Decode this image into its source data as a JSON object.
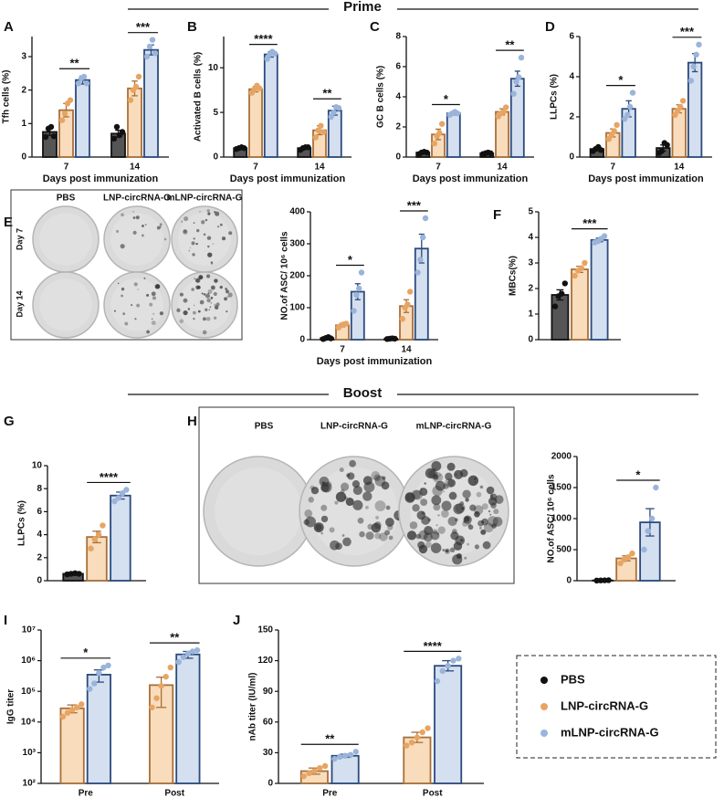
{
  "sections": [
    "Prime",
    "Boost"
  ],
  "elispot": [
    {
      "panel": "E",
      "columns": [
        "PBS",
        "LNP-circRNA-G",
        "mLNP-circRNA-G"
      ],
      "rows": [
        "Day 7",
        "Day 14"
      ]
    },
    {
      "panel": "H",
      "columns": [
        "PBS",
        "LNP-circRNA-G",
        "mLNP-circRNA-G"
      ]
    }
  ],
  "chart_data": [
    {
      "type": "bar",
      "panel": "A",
      "ylabel": "Tfh cells (%)",
      "xlabel": "Days post immunization",
      "categories": [
        "7",
        "14"
      ],
      "ylim": [
        0,
        3.6
      ],
      "yticks": [
        0,
        1,
        2,
        3
      ],
      "significance": [
        "**",
        "***"
      ],
      "series": [
        {
          "name": "PBS",
          "color": "#555555",
          "edge_color": "#111111",
          "point_color": "#111111",
          "values": [
            0.75,
            0.7
          ],
          "errors": [
            0.1,
            0.1
          ],
          "points": [
            [
              0.6,
              0.85,
              0.9,
              0.62
            ],
            [
              0.55,
              0.9,
              0.65,
              0.75
            ]
          ]
        },
        {
          "name": "LNP-circRNA-G",
          "color": "#f8dcbc",
          "edge_color": "#a8703a",
          "point_color": "#e8a462",
          "values": [
            1.4,
            2.05
          ],
          "errors": [
            0.2,
            0.22
          ],
          "points": [
            [
              1.1,
              1.3,
              1.6,
              1.7
            ],
            [
              1.7,
              2.0,
              2.1,
              2.4
            ]
          ]
        },
        {
          "name": "mLNP-circRNA-G",
          "color": "#d4dff0",
          "edge_color": "#2b4a7c",
          "point_color": "#9ab4da",
          "values": [
            2.3,
            3.2
          ],
          "errors": [
            0.12,
            0.15
          ],
          "points": [
            [
              2.2,
              2.35,
              2.4,
              2.2
            ],
            [
              3.0,
              3.3,
              3.5,
              3.1
            ]
          ]
        }
      ]
    },
    {
      "type": "bar",
      "panel": "B",
      "ylabel": "Activated B cells (%)",
      "xlabel": "Days post immunization",
      "categories": [
        "7",
        "14"
      ],
      "ylim": [
        0,
        13.5
      ],
      "yticks": [
        0,
        5,
        10
      ],
      "significance": [
        "****",
        "**"
      ],
      "series": [
        {
          "name": "PBS",
          "color": "#555555",
          "edge_color": "#111111",
          "point_color": "#111111",
          "values": [
            1.0,
            1.0
          ],
          "errors": [
            0.05,
            0.1
          ],
          "points": [
            [
              0.9,
              1.0,
              1.1,
              1.0
            ],
            [
              0.8,
              1.0,
              1.1,
              1.1
            ]
          ]
        },
        {
          "name": "LNP-circRNA-G",
          "color": "#f8dcbc",
          "edge_color": "#a8703a",
          "point_color": "#e8a462",
          "values": [
            7.6,
            3.0
          ],
          "errors": [
            0.3,
            0.5
          ],
          "points": [
            [
              7.2,
              7.6,
              8.0,
              7.7
            ],
            [
              2.2,
              3.0,
              3.5,
              2.8
            ]
          ]
        },
        {
          "name": "mLNP-circRNA-G",
          "color": "#d4dff0",
          "edge_color": "#2b4a7c",
          "point_color": "#9ab4da",
          "values": [
            11.5,
            5.2
          ],
          "errors": [
            0.3,
            0.5
          ],
          "points": [
            [
              11.0,
              11.5,
              11.8,
              11.6
            ],
            [
              4.5,
              5.0,
              5.6,
              5.5
            ]
          ]
        }
      ]
    },
    {
      "type": "bar",
      "panel": "C",
      "ylabel": "GC B cells (%)",
      "xlabel": "Days post immunization",
      "categories": [
        "7",
        "14"
      ],
      "ylim": [
        0,
        8
      ],
      "yticks": [
        0,
        2,
        4,
        6,
        8
      ],
      "significance": [
        "*",
        "**"
      ],
      "series": [
        {
          "name": "PBS",
          "color": "#555555",
          "edge_color": "#111111",
          "point_color": "#111111",
          "values": [
            0.3,
            0.25
          ],
          "errors": [
            0.05,
            0.05
          ],
          "points": [
            [
              0.2,
              0.3,
              0.35,
              0.3
            ],
            [
              0.2,
              0.25,
              0.3,
              0.25
            ]
          ]
        },
        {
          "name": "LNP-circRNA-G",
          "color": "#f8dcbc",
          "edge_color": "#a8703a",
          "point_color": "#e8a462",
          "values": [
            1.5,
            3.0
          ],
          "errors": [
            0.35,
            0.2
          ],
          "points": [
            [
              0.9,
              1.4,
              1.6,
              2.2
            ],
            [
              2.7,
              2.9,
              3.0,
              3.3
            ]
          ]
        },
        {
          "name": "mLNP-circRNA-G",
          "color": "#d4dff0",
          "edge_color": "#2b4a7c",
          "point_color": "#9ab4da",
          "values": [
            2.9,
            5.2
          ],
          "errors": [
            0.1,
            0.5
          ],
          "points": [
            [
              2.8,
              2.9,
              3.0,
              2.9
            ],
            [
              4.2,
              5.0,
              5.3,
              6.6
            ]
          ]
        }
      ]
    },
    {
      "type": "bar",
      "panel": "D",
      "ylabel": "LLPCs (%)",
      "xlabel": "Days post immunization",
      "categories": [
        "7",
        "14"
      ],
      "ylim": [
        0,
        6
      ],
      "yticks": [
        0,
        2,
        4,
        6
      ],
      "significance": [
        "*",
        "***"
      ],
      "series": [
        {
          "name": "PBS",
          "color": "#555555",
          "edge_color": "#111111",
          "point_color": "#111111",
          "values": [
            0.4,
            0.45
          ],
          "errors": [
            0.08,
            0.15
          ],
          "points": [
            [
              0.3,
              0.4,
              0.5,
              0.35
            ],
            [
              0.2,
              0.3,
              0.7,
              0.6
            ]
          ]
        },
        {
          "name": "LNP-circRNA-G",
          "color": "#f8dcbc",
          "edge_color": "#a8703a",
          "point_color": "#e8a462",
          "values": [
            1.2,
            2.4
          ],
          "errors": [
            0.2,
            0.2
          ],
          "points": [
            [
              0.9,
              1.1,
              1.3,
              1.6
            ],
            [
              2.1,
              2.3,
              2.5,
              2.8
            ]
          ]
        },
        {
          "name": "mLNP-circRNA-G",
          "color": "#d4dff0",
          "edge_color": "#2b4a7c",
          "point_color": "#9ab4da",
          "values": [
            2.4,
            4.7
          ],
          "errors": [
            0.4,
            0.45
          ],
          "points": [
            [
              1.9,
              2.1,
              2.5,
              3.2
            ],
            [
              3.8,
              4.5,
              5.1,
              5.6
            ]
          ]
        }
      ]
    },
    {
      "type": "bar",
      "ylabel": "NO.of ASC/ 10⁶ cells",
      "xlabel": "Days post immunization",
      "categories": [
        "7",
        "14"
      ],
      "ylim": [
        0,
        400
      ],
      "yticks": [
        0,
        100,
        200,
        300,
        400
      ],
      "significance": [
        "*",
        "***"
      ],
      "series": [
        {
          "name": "PBS",
          "color": "#555555",
          "edge_color": "#111111",
          "point_color": "#111111",
          "values": [
            5,
            3
          ],
          "errors": [
            2,
            1
          ],
          "points": [
            [
              2,
              5,
              8,
              4
            ],
            [
              2,
              3,
              4,
              3
            ]
          ]
        },
        {
          "name": "LNP-circRNA-G",
          "color": "#f8dcbc",
          "edge_color": "#a8703a",
          "point_color": "#e8a462",
          "values": [
            45,
            105
          ],
          "errors": [
            5,
            20
          ],
          "points": [
            [
              38,
              45,
              48,
              50
            ],
            [
              65,
              100,
              110,
              150
            ]
          ]
        },
        {
          "name": "mLNP-circRNA-G",
          "color": "#d4dff0",
          "edge_color": "#2b4a7c",
          "point_color": "#9ab4da",
          "values": [
            150,
            285
          ],
          "errors": [
            25,
            45
          ],
          "points": [
            [
              90,
              140,
              160,
              210
            ],
            [
              210,
              250,
              320,
              380
            ]
          ]
        }
      ]
    },
    {
      "type": "bar",
      "panel": "F",
      "ylabel": "MBCs(%)",
      "categories": [
        null
      ],
      "ylim": [
        0,
        5
      ],
      "yticks": [
        0,
        1,
        2,
        3,
        4,
        5
      ],
      "significance": [
        "***"
      ],
      "series": [
        {
          "name": "PBS",
          "color": "#555555",
          "edge_color": "#111111",
          "point_color": "#111111",
          "values": [
            1.75
          ],
          "errors": [
            0.2
          ],
          "points": [
            [
              1.3,
              1.7,
              1.8,
              2.2
            ]
          ]
        },
        {
          "name": "LNP-circRNA-G",
          "color": "#f8dcbc",
          "edge_color": "#a8703a",
          "point_color": "#e8a462",
          "values": [
            2.75
          ],
          "errors": [
            0.12
          ],
          "points": [
            [
              2.5,
              2.7,
              2.8,
              3.0
            ]
          ]
        },
        {
          "name": "mLNP-circRNA-G",
          "color": "#d4dff0",
          "edge_color": "#2b4a7c",
          "point_color": "#9ab4da",
          "values": [
            3.9
          ],
          "errors": [
            0.07
          ],
          "points": [
            [
              3.8,
              3.85,
              3.95,
              4.05
            ]
          ]
        }
      ]
    },
    {
      "type": "bar",
      "panel": "G",
      "ylabel": "LLPCs (%)",
      "categories": [
        null
      ],
      "ylim": [
        0,
        10
      ],
      "yticks": [
        0,
        2,
        4,
        6,
        8,
        10
      ],
      "significance": [
        "****"
      ],
      "series": [
        {
          "name": "PBS",
          "color": "#555555",
          "edge_color": "#111111",
          "point_color": "#111111",
          "values": [
            0.6
          ],
          "errors": [
            0.05
          ],
          "points": [
            [
              0.55,
              0.6,
              0.65,
              0.6
            ]
          ]
        },
        {
          "name": "LNP-circRNA-G",
          "color": "#f8dcbc",
          "edge_color": "#a8703a",
          "point_color": "#e8a462",
          "values": [
            3.8
          ],
          "errors": [
            0.5
          ],
          "points": [
            [
              2.8,
              3.6,
              4.0,
              4.8
            ]
          ]
        },
        {
          "name": "mLNP-circRNA-G",
          "color": "#d4dff0",
          "edge_color": "#2b4a7c",
          "point_color": "#9ab4da",
          "values": [
            7.4
          ],
          "errors": [
            0.3
          ],
          "points": [
            [
              6.9,
              7.2,
              7.6,
              7.9
            ]
          ]
        }
      ]
    },
    {
      "type": "bar",
      "ylabel": "NO.of ASC/ 10⁶ cells",
      "categories": [
        null
      ],
      "ylim": [
        0,
        2000
      ],
      "yticks": [
        0,
        500,
        1000,
        1500,
        2000
      ],
      "significance": [
        "*"
      ],
      "series": [
        {
          "name": "PBS",
          "color": "#555555",
          "edge_color": "#111111",
          "point_color": "#111111",
          "values": [
            5
          ],
          "errors": [
            2
          ],
          "points": [
            [
              2,
              4,
              6,
              8
            ]
          ]
        },
        {
          "name": "LNP-circRNA-G",
          "color": "#f8dcbc",
          "edge_color": "#a8703a",
          "point_color": "#e8a462",
          "values": [
            360
          ],
          "errors": [
            40
          ],
          "points": [
            [
              280,
              340,
              380,
              440
            ]
          ]
        },
        {
          "name": "mLNP-circRNA-G",
          "color": "#d4dff0",
          "edge_color": "#2b4a7c",
          "point_color": "#9ab4da",
          "values": [
            940
          ],
          "errors": [
            220
          ],
          "points": [
            [
              500,
              800,
              1000,
              1500
            ]
          ]
        }
      ]
    },
    {
      "type": "bar",
      "panel": "I",
      "ylabel": "IgG titer",
      "categories": [
        "Pre",
        "Post"
      ],
      "log": true,
      "ylim": [
        100,
        10000000
      ],
      "yticks": [
        {
          "value": 100,
          "label": "10²"
        },
        {
          "value": 1000,
          "label": "10³"
        },
        {
          "value": 10000,
          "label": "10⁴"
        },
        {
          "value": 100000,
          "label": "10⁵"
        },
        {
          "value": 1000000,
          "label": "10⁶"
        },
        {
          "value": 10000000,
          "label": "10⁷"
        }
      ],
      "significance": [
        "*",
        "**"
      ],
      "series": [
        {
          "name": "LNP-circRNA-G",
          "color": "#f8dcbc",
          "edge_color": "#a8703a",
          "point_color": "#e8a462",
          "values": [
            28000,
            160000
          ],
          "errors": [
            8000,
            130000
          ],
          "points": [
            [
              15000,
              20000,
              25000,
              30000,
              38000
            ],
            [
              30000,
              60000,
              150000,
              300000,
              600000
            ]
          ]
        },
        {
          "name": "mLNP-circRNA-G",
          "color": "#d4dff0",
          "edge_color": "#2b4a7c",
          "point_color": "#9ab4da",
          "values": [
            350000,
            1600000
          ],
          "errors": [
            150000,
            400000
          ],
          "points": [
            [
              120000,
              180000,
              400000,
              600000,
              700000
            ],
            [
              900000,
              1300000,
              1700000,
              2000000,
              2200000
            ]
          ]
        }
      ]
    },
    {
      "type": "bar",
      "panel": "J",
      "ylabel": "nAb titer (IU/ml)",
      "categories": [
        "Pre",
        "Post"
      ],
      "ylim": [
        0,
        150
      ],
      "yticks": [
        0,
        30,
        60,
        90,
        120,
        150
      ],
      "significance": [
        "**",
        "****"
      ],
      "series": [
        {
          "name": "LNP-circRNA-G",
          "color": "#f8dcbc",
          "edge_color": "#a8703a",
          "point_color": "#e8a462",
          "values": [
            12,
            45
          ],
          "errors": [
            3,
            5
          ],
          "points": [
            [
              7,
              10,
              12,
              15,
              17
            ],
            [
              37,
              40,
              45,
              50,
              54
            ]
          ]
        },
        {
          "name": "mLNP-circRNA-G",
          "color": "#d4dff0",
          "edge_color": "#2b4a7c",
          "point_color": "#9ab4da",
          "values": [
            27,
            115
          ],
          "errors": [
            1.5,
            5
          ],
          "points": [
            [
              24,
              26,
              27,
              28,
              31
            ],
            [
              100,
              110,
              115,
              120,
              122
            ]
          ]
        }
      ]
    }
  ]
}
